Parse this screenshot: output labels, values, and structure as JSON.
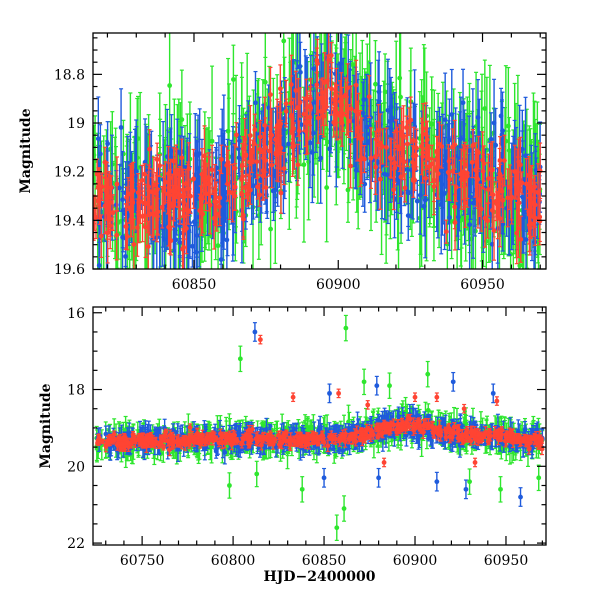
{
  "chart_data": [
    {
      "type": "scatter",
      "title": "",
      "xlabel": "",
      "ylabel": "Magnitude",
      "xlim": [
        60815,
        60972
      ],
      "ylim": [
        19.6,
        18.63
      ],
      "y_inverted": true,
      "xticks": [
        60850,
        60900,
        60950
      ],
      "xtick_labels": [
        "60850",
        "60900",
        "60950"
      ],
      "yticks": [
        18.8,
        19,
        19.2,
        19.4,
        19.6
      ],
      "ytick_labels": [
        "18.8",
        "19",
        "19.2",
        "19.4",
        "19.6"
      ],
      "error_bars": true,
      "grid": false,
      "series": [
        {
          "color": "#2ee62e",
          "x_range": [
            60815,
            60970
          ],
          "baseline": [
            [
              60815,
              19.33
            ],
            [
              60860,
              19.28
            ],
            [
              60895,
              18.9
            ],
            [
              60920,
              19.12
            ],
            [
              60970,
              19.32
            ]
          ],
          "typical_error": 0.2
        },
        {
          "color": "#1f5bdc",
          "x_range": [
            60815,
            60970
          ],
          "baseline": [
            [
              60815,
              19.33
            ],
            [
              60860,
              19.28
            ],
            [
              60895,
              18.9
            ],
            [
              60920,
              19.12
            ],
            [
              60970,
              19.32
            ]
          ],
          "typical_error": 0.15
        },
        {
          "color": "#ff4433",
          "x_range": [
            60815,
            60970
          ],
          "baseline": [
            [
              60815,
              19.33
            ],
            [
              60860,
              19.28
            ],
            [
              60895,
              18.9
            ],
            [
              60920,
              19.12
            ],
            [
              60970,
              19.32
            ]
          ],
          "typical_error": 0.08
        }
      ]
    },
    {
      "type": "scatter",
      "title": "",
      "xlabel": "HJD−2400000",
      "ylabel": "Magnitude",
      "xlim": [
        60723,
        60972
      ],
      "ylim": [
        22.05,
        15.85
      ],
      "y_inverted": true,
      "xticks": [
        60750,
        60800,
        60850,
        60900,
        60950
      ],
      "xtick_labels": [
        "60750",
        "60800",
        "60850",
        "60900",
        "60950"
      ],
      "yticks": [
        16,
        18,
        20,
        22
      ],
      "ytick_labels": [
        "16",
        "18",
        "20",
        "22"
      ],
      "error_bars": true,
      "grid": false,
      "series": [
        {
          "color": "#2ee62e",
          "x_range": [
            60725,
            60970
          ],
          "baseline": [
            [
              60725,
              19.35
            ],
            [
              60800,
              19.3
            ],
            [
              60860,
              19.28
            ],
            [
              60895,
              18.9
            ],
            [
              60920,
              19.12
            ],
            [
              60970,
              19.32
            ]
          ],
          "typical_error": 0.3,
          "outliers": [
            [
              60804,
              17.2
            ],
            [
              60862,
              16.4
            ],
            [
              60857,
              21.6
            ],
            [
              60861,
              21.1
            ],
            [
              60872,
              17.8
            ],
            [
              60886,
              17.9
            ],
            [
              60907,
              17.6
            ],
            [
              60798,
              20.5
            ],
            [
              60813,
              20.2
            ],
            [
              60838,
              20.6
            ],
            [
              60930,
              20.4
            ],
            [
              60947,
              20.6
            ],
            [
              60968,
              20.3
            ]
          ]
        },
        {
          "color": "#1f5bdc",
          "x_range": [
            60725,
            60970
          ],
          "baseline": [
            [
              60725,
              19.35
            ],
            [
              60800,
              19.3
            ],
            [
              60860,
              19.28
            ],
            [
              60895,
              18.9
            ],
            [
              60920,
              19.12
            ],
            [
              60970,
              19.32
            ]
          ],
          "typical_error": 0.22,
          "outliers": [
            [
              60812,
              16.5
            ],
            [
              60853,
              18.1
            ],
            [
              60879,
              17.9
            ],
            [
              60891,
              18.7
            ],
            [
              60921,
              17.8
            ],
            [
              60943,
              18.1
            ],
            [
              60958,
              20.8
            ],
            [
              60928,
              20.6
            ],
            [
              60912,
              20.4
            ],
            [
              60880,
              20.3
            ],
            [
              60850,
              20.3
            ]
          ]
        },
        {
          "color": "#ff4433",
          "x_range": [
            60725,
            60970
          ],
          "baseline": [
            [
              60725,
              19.35
            ],
            [
              60800,
              19.3
            ],
            [
              60860,
              19.28
            ],
            [
              60895,
              18.9
            ],
            [
              60920,
              19.12
            ],
            [
              60970,
              19.32
            ]
          ],
          "typical_error": 0.1,
          "outliers": [
            [
              60815,
              16.7
            ],
            [
              60833,
              18.2
            ],
            [
              60858,
              18.1
            ],
            [
              60874,
              18.4
            ],
            [
              60900,
              18.2
            ],
            [
              60912,
              18.2
            ],
            [
              60927,
              18.5
            ],
            [
              60945,
              18.3
            ],
            [
              60933,
              19.9
            ],
            [
              60883,
              19.9
            ]
          ]
        }
      ]
    }
  ]
}
